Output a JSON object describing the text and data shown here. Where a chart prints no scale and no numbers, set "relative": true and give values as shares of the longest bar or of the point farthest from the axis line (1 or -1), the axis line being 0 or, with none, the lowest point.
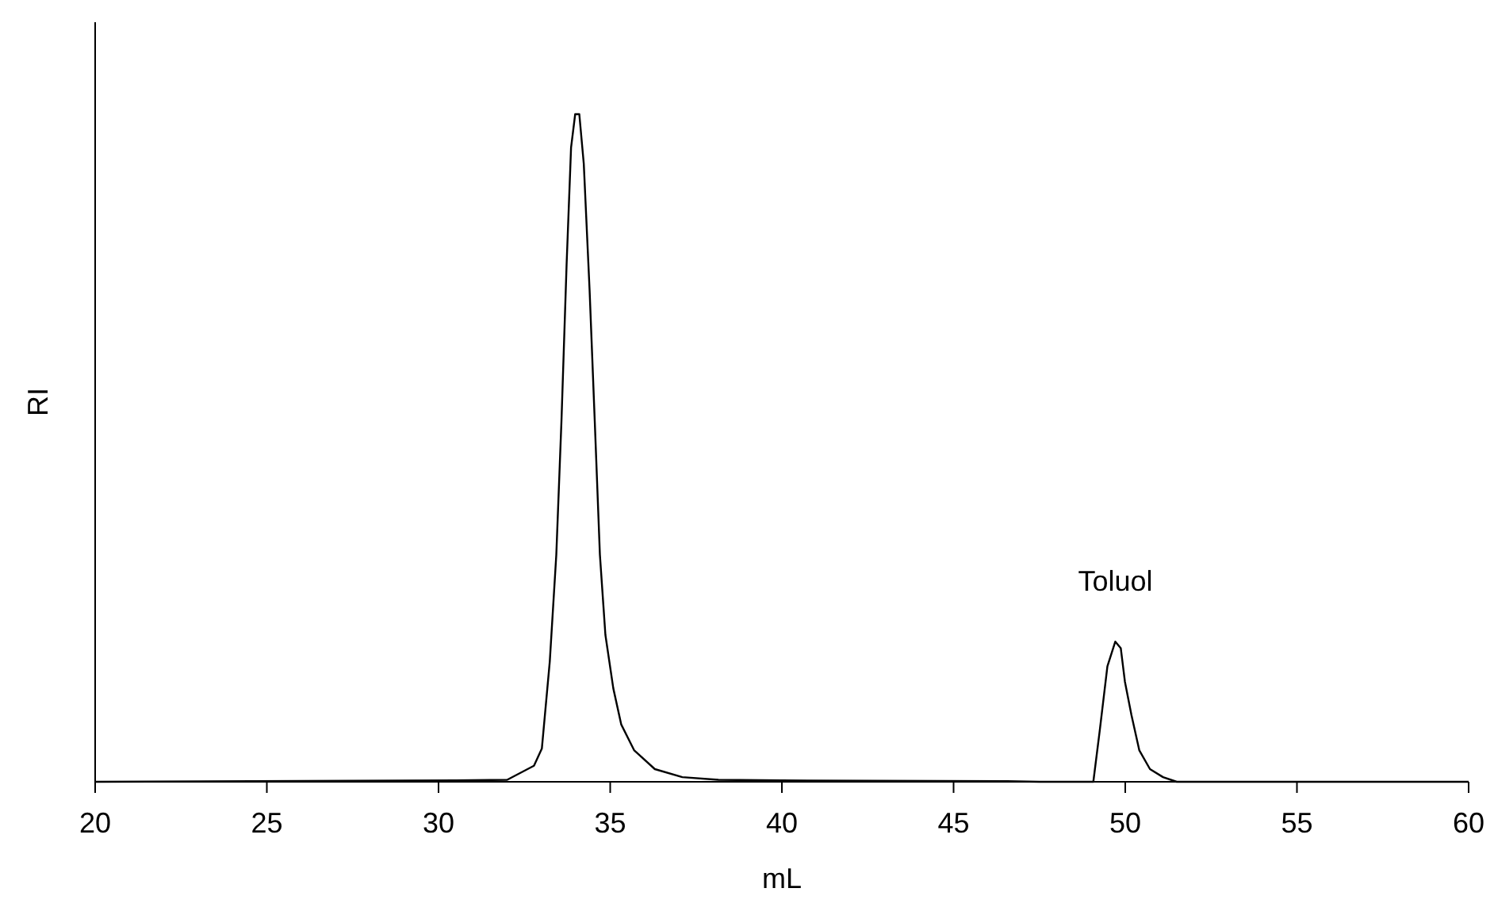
{
  "chart_data": {
    "type": "line",
    "xlabel": "mL",
    "ylabel": "RI",
    "relative": true,
    "xlim": [
      20,
      60
    ],
    "xticks": [
      20,
      25,
      30,
      35,
      40,
      45,
      50,
      55,
      60
    ],
    "annotations": [
      {
        "text": "Toluol",
        "x": 49.71,
        "y": 0.21
      }
    ],
    "series": [
      {
        "color": "#000000",
        "x": [
          20,
          30.5,
          32.0,
          32.78,
          33.01,
          33.24,
          33.43,
          33.58,
          33.73,
          33.86,
          33.98,
          34.1,
          34.23,
          34.4,
          34.55,
          34.7,
          34.86,
          35.09,
          35.32,
          35.7,
          36.3,
          37.1,
          38.15,
          40,
          46.5,
          47.5,
          49.07,
          49.26,
          49.48,
          49.71,
          49.87,
          49.99,
          50.18,
          50.41,
          50.72,
          51.1,
          51.5,
          60
        ],
        "values": [
          0,
          0.002,
          0.003,
          0.024,
          0.05,
          0.18,
          0.34,
          0.54,
          0.775,
          0.95,
          1.0,
          1.0,
          0.926,
          0.736,
          0.54,
          0.34,
          0.22,
          0.14,
          0.086,
          0.047,
          0.019,
          0.007,
          0.003,
          0.002,
          0.001,
          0,
          0,
          0.078,
          0.173,
          0.21,
          0.2,
          0.15,
          0.1,
          0.047,
          0.019,
          0.007,
          0,
          0
        ]
      }
    ]
  }
}
